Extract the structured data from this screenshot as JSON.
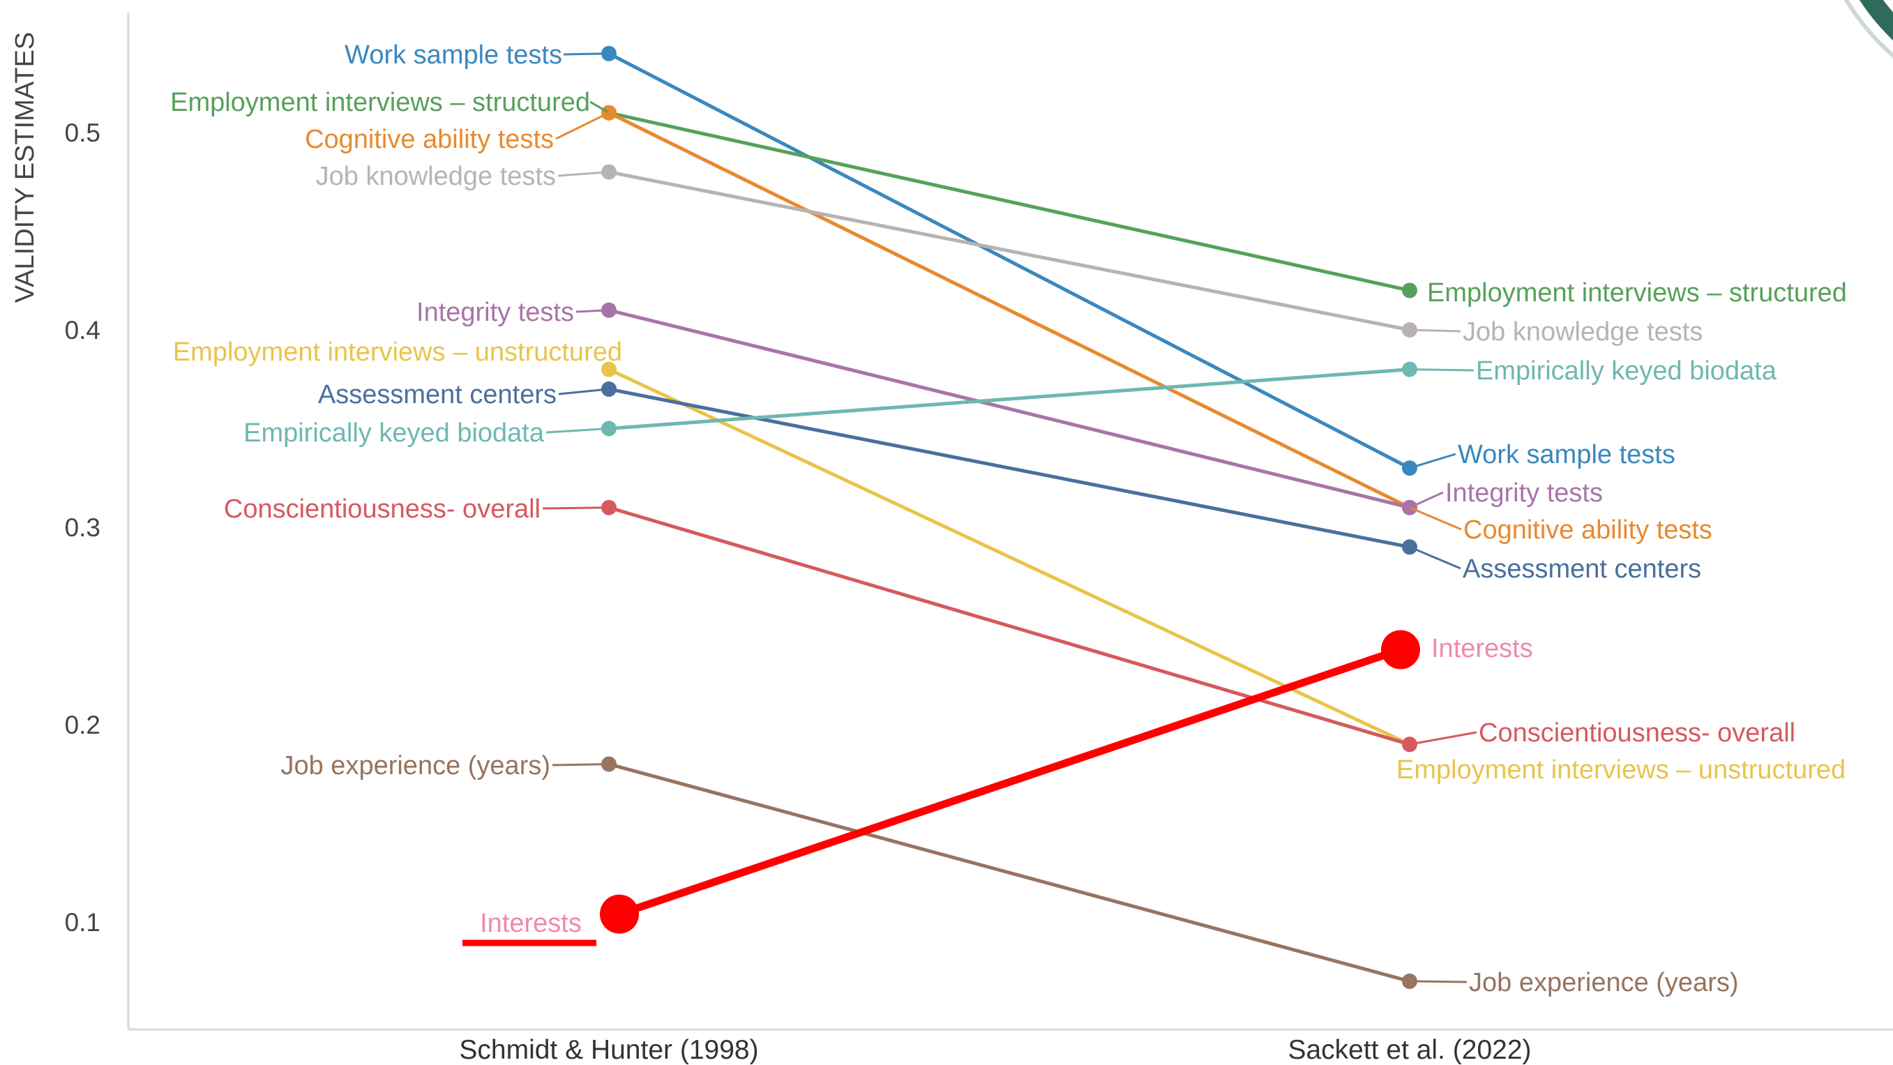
{
  "chart_data": {
    "type": "line",
    "ylabel": "VALIDITY ESTIMATES",
    "xlabel": "",
    "categories": [
      "Schmidt & Hunter (1998)",
      "Sackett et al. (2022)"
    ],
    "yticks": [
      "0.1",
      "0.2",
      "0.3",
      "0.4",
      "0.5"
    ],
    "yticks_values": [
      0.1,
      0.2,
      0.3,
      0.4,
      0.5
    ],
    "ylim": [
      0.05,
      0.56
    ],
    "grid": false,
    "series": [
      {
        "name": "Work sample tests",
        "color": "#3a87be",
        "values": [
          0.54,
          0.33
        ]
      },
      {
        "name": "Employment interviews – structured",
        "color": "#57a05a",
        "values": [
          0.51,
          0.42
        ]
      },
      {
        "name": "Cognitive ability tests",
        "color": "#e8892f",
        "values": [
          0.51,
          0.31
        ]
      },
      {
        "name": "Job knowledge tests",
        "color": "#b8b3b1",
        "values": [
          0.48,
          0.4
        ]
      },
      {
        "name": "Integrity tests",
        "color": "#a874a8",
        "values": [
          0.41,
          0.31
        ]
      },
      {
        "name": "Employment interviews – unstructured",
        "color": "#e9c44b",
        "values": [
          0.38,
          0.19
        ]
      },
      {
        "name": "Assessment centers",
        "color": "#4a6f9d",
        "values": [
          0.37,
          0.29
        ]
      },
      {
        "name": "Empirically keyed biodata",
        "color": "#6db8b1",
        "values": [
          0.35,
          0.38
        ]
      },
      {
        "name": "Conscientiousness- overall",
        "color": "#d6595e",
        "values": [
          0.31,
          0.19
        ]
      },
      {
        "name": "Job experience (years)",
        "color": "#96745e",
        "values": [
          0.18,
          0.07
        ]
      }
    ],
    "left_labels": {
      "Work sample tests": "Work sample tests",
      "Employment interviews – structured": "Employment interviews – structured",
      "Cognitive ability tests": "Cognitive ability tests",
      "Job knowledge tests": "Job knowledge tests",
      "Integrity tests": "Integrity tests",
      "Employment interviews – unstructured": "Employment interviews – unstructured",
      "Assessment centers": "Assessment centers",
      "Empirically keyed biodata": "Empirically keyed biodata",
      "Conscientiousness- overall": "Conscientiousness- overall",
      "Job experience (years)": "Job experience (years)"
    },
    "annotation": {
      "name": "Interests",
      "label_left": "Interests",
      "label_right": "Interests",
      "values": [
        0.104,
        0.238
      ],
      "highlight_color": "#ff0000",
      "label_color": "#f08aa6"
    }
  }
}
